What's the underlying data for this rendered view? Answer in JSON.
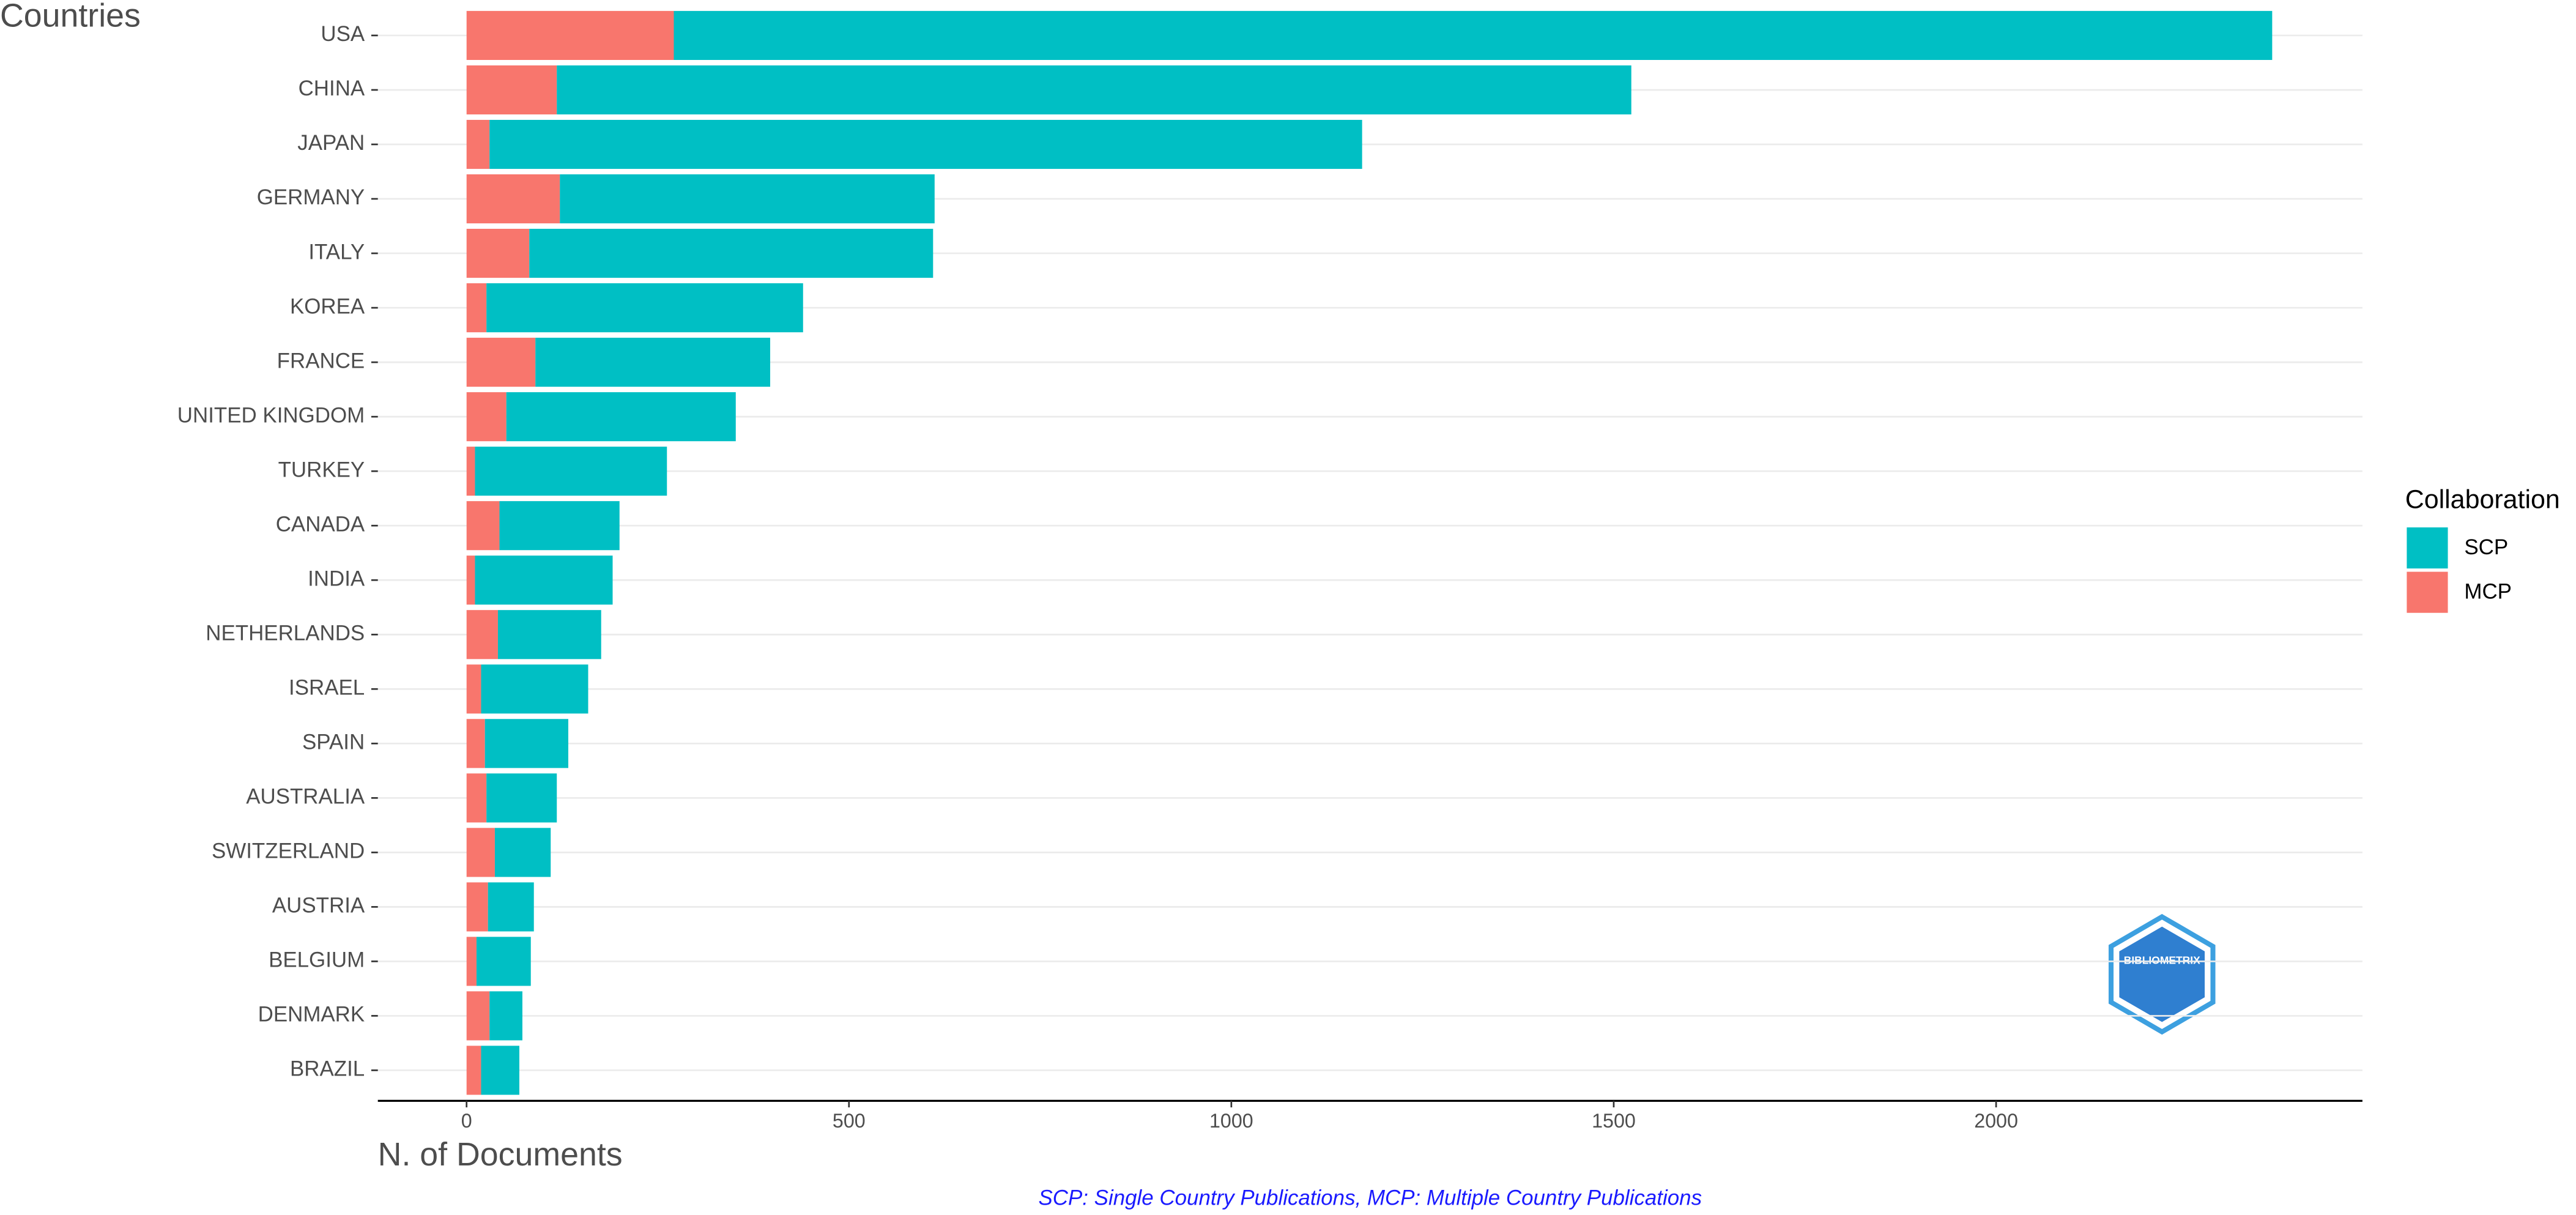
{
  "chart_data": {
    "type": "bar",
    "orientation": "horizontal",
    "stacked": true,
    "y_label": "Countries",
    "x_label": "N. of Documents",
    "caption": "SCP: Single Country Publications, MCP: Multiple Country Publications",
    "legend_title": "Collaboration",
    "legend_position": "right",
    "logo": "BIBLIOMETRIX",
    "categories": [
      "USA",
      "CHINA",
      "JAPAN",
      "GERMANY",
      "ITALY",
      "KOREA",
      "FRANCE",
      "UNITED KINGDOM",
      "TURKEY",
      "CANADA",
      "INDIA",
      "NETHERLANDS",
      "ISRAEL",
      "SPAIN",
      "AUSTRALIA",
      "SWITZERLAND",
      "AUSTRIA",
      "BELGIUM",
      "DENMARK",
      "BRAZIL"
    ],
    "series": [
      {
        "name": "SCP",
        "color": "#00BFC4",
        "values": [
          2090,
          1405,
          1141,
          490,
          528,
          414,
          307,
          300,
          251,
          157,
          180,
          135,
          140,
          109,
          92,
          73,
          60,
          71,
          43,
          50
        ]
      },
      {
        "name": "MCP",
        "color": "#F8766D",
        "values": [
          271,
          118,
          30,
          122,
          82,
          26,
          90,
          52,
          11,
          43,
          11,
          41,
          19,
          24,
          26,
          37,
          28,
          13,
          30,
          19
        ]
      }
    ],
    "xlim": [
      -116,
      2479
    ],
    "xticks": [
      0,
      500,
      1000,
      1500,
      2000
    ],
    "grid": true
  }
}
